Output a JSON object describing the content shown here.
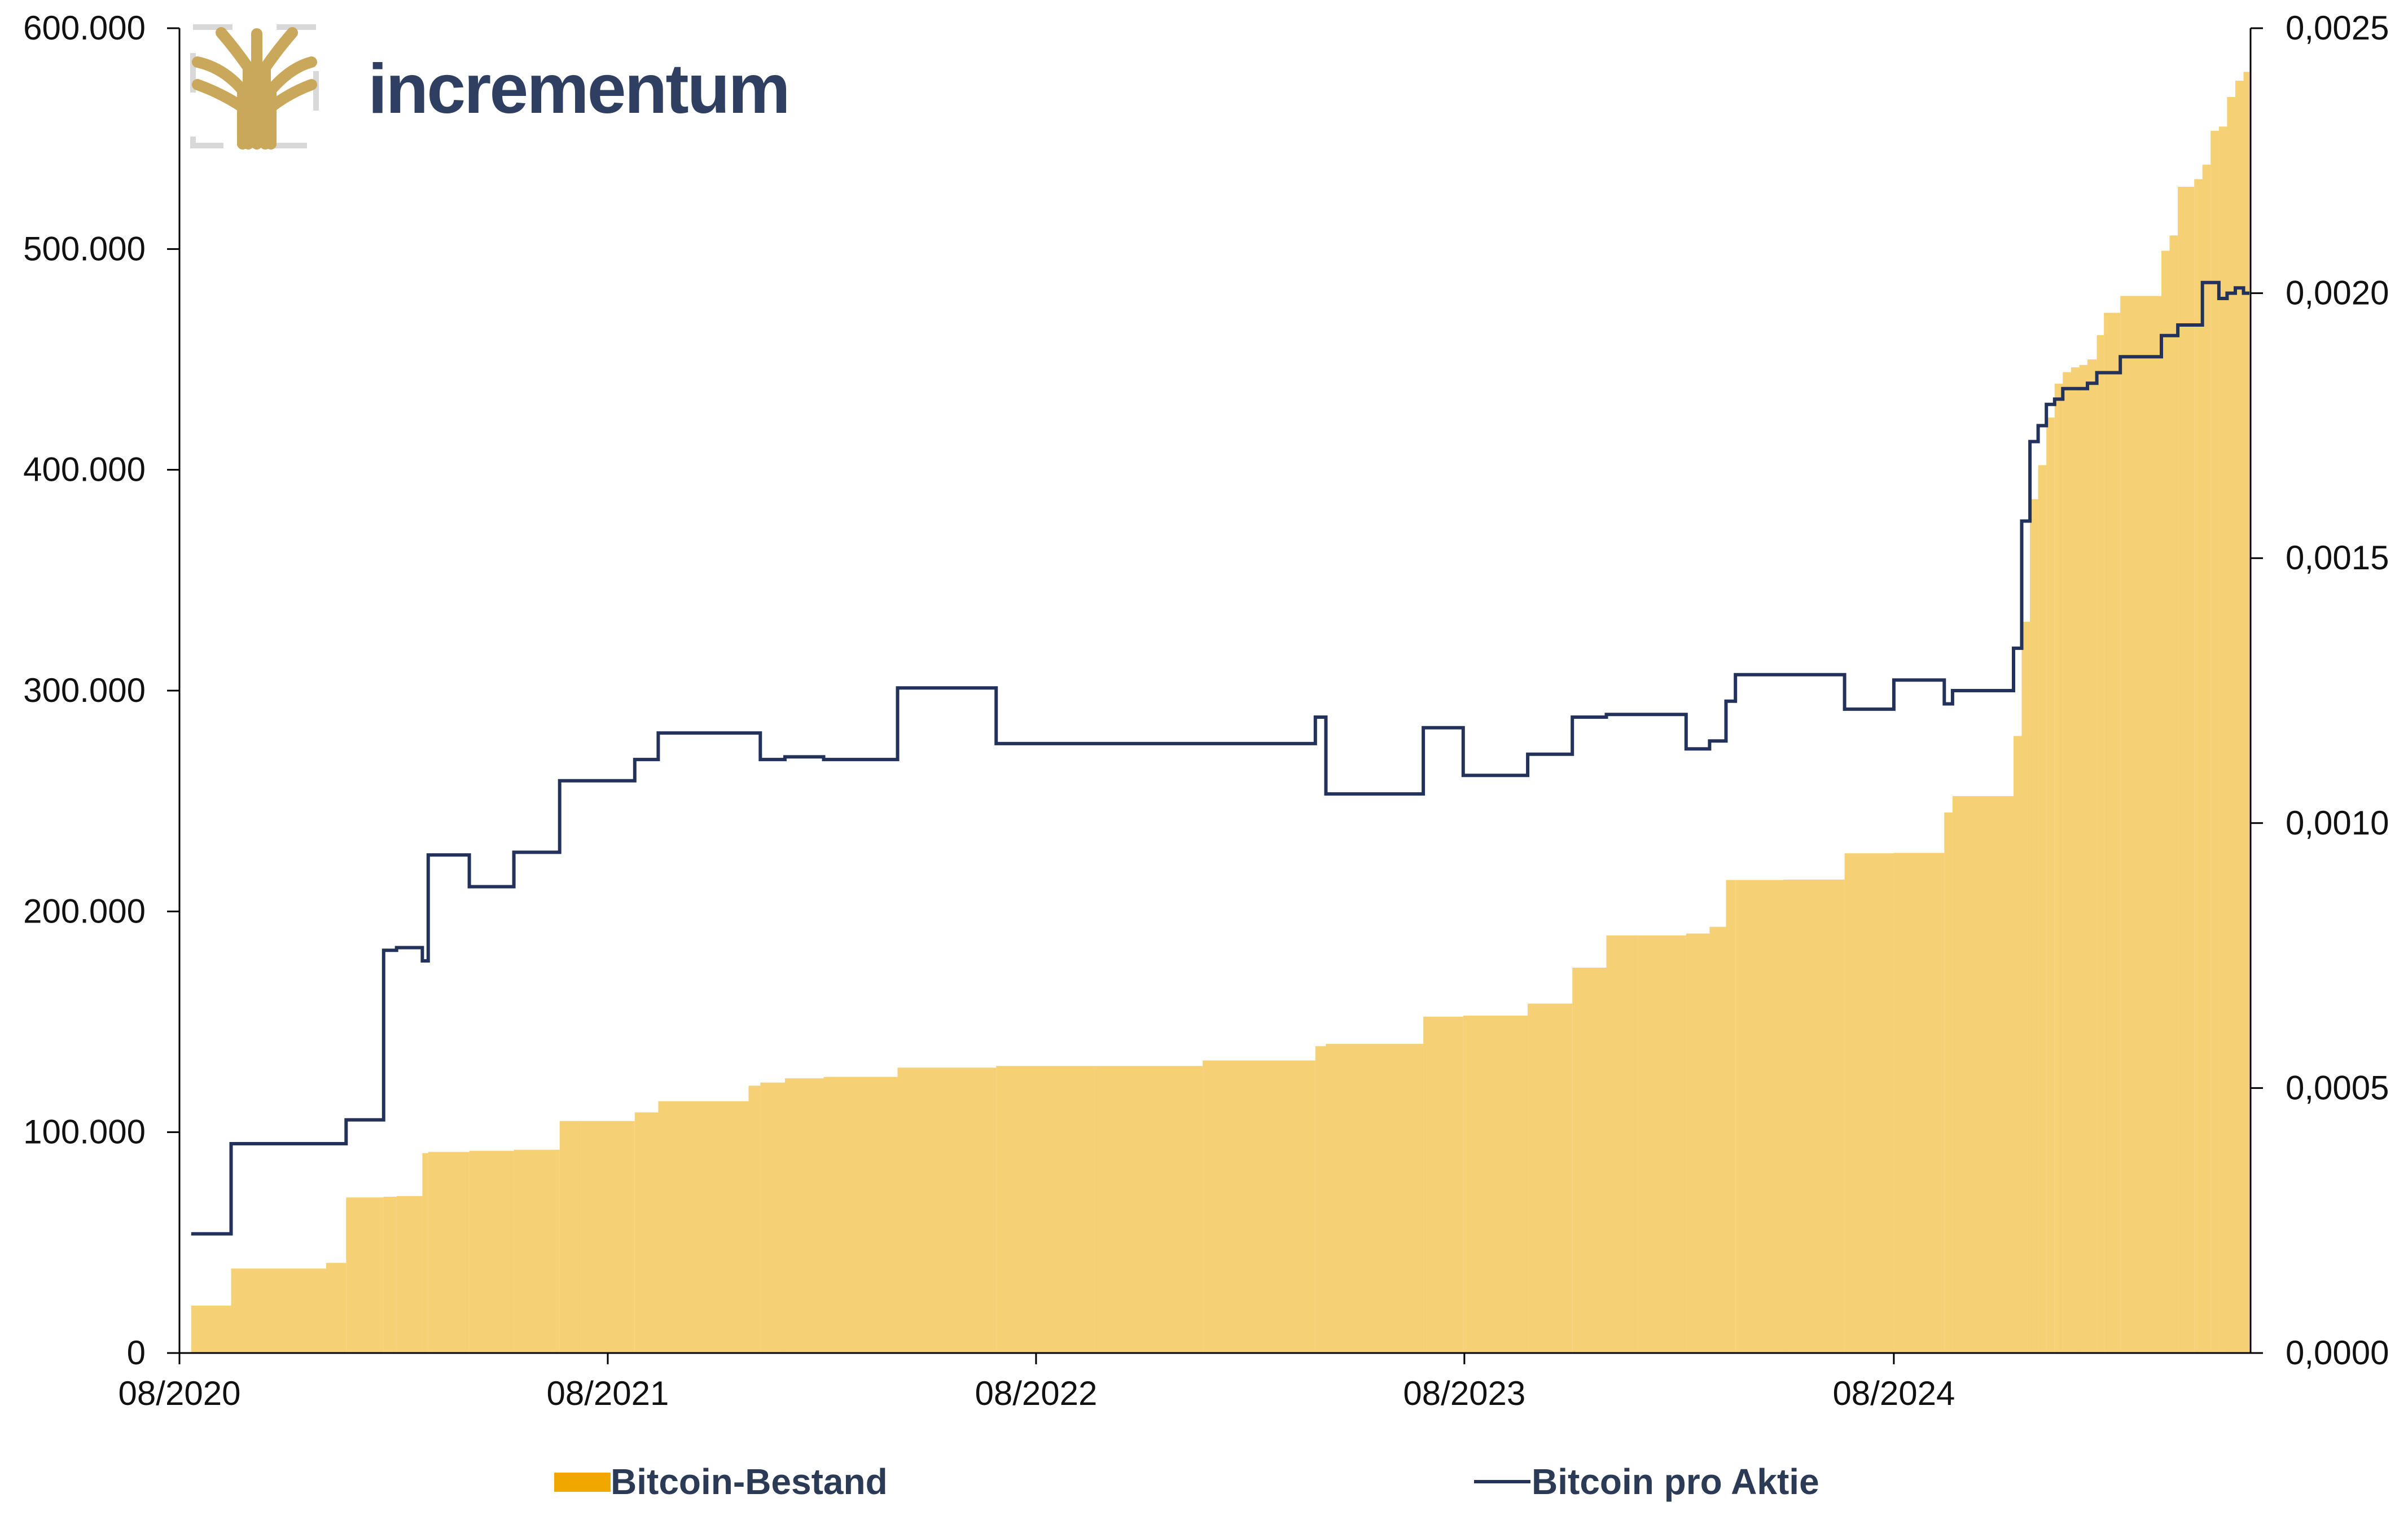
{
  "logo": {
    "text": "incrementum"
  },
  "colors": {
    "bars": "#f5c85c",
    "line": "#23325a",
    "legend_bar": "#f0a800",
    "axis": "#000000"
  },
  "chart_data": {
    "type": "bar",
    "x": [
      "2020-08-11",
      "2020-09-14",
      "2020-12-04",
      "2020-12-21",
      "2021-01-22",
      "2021-02-02",
      "2021-02-24",
      "2021-03-01",
      "2021-04-05",
      "2021-05-13",
      "2021-06-21",
      "2021-07-09",
      "2021-08-24",
      "2021-09-13",
      "2021-11-29",
      "2021-12-09",
      "2021-12-30",
      "2022-02-01",
      "2022-04-05",
      "2022-06-28",
      "2022-09-20",
      "2022-12-21",
      "2022-12-24",
      "2023-03-27",
      "2023-04-05",
      "2023-06-27",
      "2023-07-31",
      "2023-09-24",
      "2023-11-01",
      "2023-11-30",
      "2023-12-27",
      "2024-02-06",
      "2024-02-26",
      "2024-03-11",
      "2024-03-19",
      "2024-04-29",
      "2024-06-20",
      "2024-08-01",
      "2024-09-13",
      "2024-09-20",
      "2024-11-11",
      "2024-11-18",
      "2024-11-25",
      "2024-12-02",
      "2024-12-09",
      "2024-12-16",
      "2024-12-23",
      "2024-12-30",
      "2025-01-06",
      "2025-01-13",
      "2025-01-21",
      "2025-01-27",
      "2025-02-10",
      "2025-03-17",
      "2025-03-24",
      "2025-03-31",
      "2025-04-14",
      "2025-04-21",
      "2025-04-28",
      "2025-05-05",
      "2025-05-12",
      "2025-05-19",
      "2025-05-26"
    ],
    "series": [
      {
        "name": "Bitcoin-Bestand",
        "axis": "left",
        "values": [
          21454,
          38250,
          40824,
          70470,
          70784,
          71079,
          90531,
          91064,
          91579,
          92079,
          105085,
          105085,
          108992,
          114042,
          121044,
          122478,
          124391,
          125051,
          129218,
          130000,
          130000,
          132500,
          132500,
          138955,
          140000,
          152333,
          152800,
          158245,
          174530,
          189150,
          189150,
          190000,
          193000,
          214246,
          214246,
          214400,
          226331,
          226500,
          244800,
          252220,
          279420,
          331200,
          386700,
          402100,
          423650,
          439000,
          444262,
          446400,
          447470,
          450000,
          461000,
          471107,
          478740,
          499226,
          506137,
          528185,
          531644,
          538200,
          553555,
          555450,
          568840,
          576230,
          580250
        ]
      },
      {
        "name": "Bitcoin pro Aktie",
        "axis": "right",
        "values": [
          0.000225,
          0.000395,
          0.000395,
          0.00044,
          0.00076,
          0.000765,
          0.00074,
          0.00094,
          0.00088,
          0.000945,
          0.00108,
          0.00108,
          0.00112,
          0.00117,
          0.00117,
          0.00112,
          0.001125,
          0.00112,
          0.001255,
          0.00115,
          0.00115,
          0.00115,
          0.00115,
          0.0012,
          0.001055,
          0.00118,
          0.00109,
          0.00113,
          0.0012,
          0.001205,
          0.001205,
          0.00114,
          0.001155,
          0.00123,
          0.00128,
          0.00128,
          0.001215,
          0.00127,
          0.001225,
          0.00125,
          0.00133,
          0.00157,
          0.00172,
          0.00175,
          0.00179,
          0.0018,
          0.00182,
          0.00182,
          0.00182,
          0.00183,
          0.00185,
          0.00185,
          0.00188,
          0.00192,
          0.00192,
          0.00194,
          0.00194,
          0.00202,
          0.00202,
          0.00199,
          0.002,
          0.00201,
          0.002
        ]
      }
    ],
    "x_ticks": [
      "08/2020",
      "08/2021",
      "08/2022",
      "08/2023",
      "08/2024"
    ],
    "y_left_ticks": [
      "0",
      "100.000",
      "200.000",
      "300.000",
      "400.000",
      "500.000",
      "600.000"
    ],
    "y_right_ticks": [
      "0,0000",
      "0,0005",
      "0,0010",
      "0,0015",
      "0,0020",
      "0,0025"
    ],
    "ylim_left": [
      0,
      600000
    ],
    "ylim_right": [
      0,
      0.0025
    ],
    "xlim": [
      "2020-08-01",
      "2025-06-01"
    ],
    "legend": {
      "placement": "bottom",
      "items": [
        "Bitcoin-Bestand",
        "Bitcoin pro Aktie"
      ]
    },
    "grid": false
  }
}
